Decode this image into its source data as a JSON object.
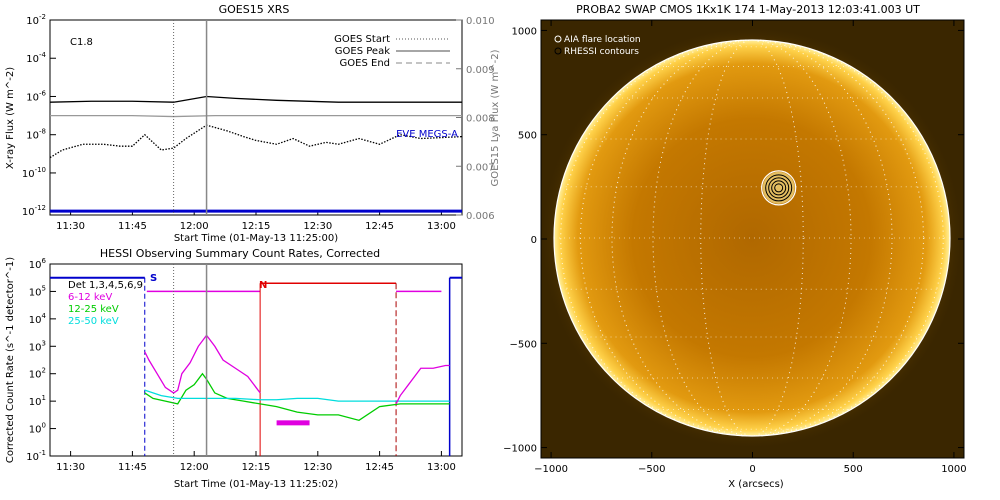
{
  "chart_data": [
    {
      "type": "line",
      "title": "GOES15 XRS",
      "xlabel": "Start Time (01-May-13 11:25:00)",
      "ylabel": "X-ray Flux (W m^-2)",
      "ylabel_right": "GOES15 Lya Flux (W m^-2)",
      "flare_class": "C1.8",
      "x_ticks": [
        "11:30",
        "11:45",
        "12:00",
        "12:15",
        "12:30",
        "12:45",
        "13:00"
      ],
      "x_minutes": [
        30,
        45,
        60,
        75,
        90,
        105,
        120
      ],
      "xlim_minutes": [
        25,
        125
      ],
      "y_ticks": [
        "10^-2",
        "10^-4",
        "10^-6",
        "10^-8",
        "10^-10",
        "10^-12"
      ],
      "ylim_log10": [
        -12.2,
        -2
      ],
      "y2_ticks": [
        "0.010",
        "0.009",
        "0.008",
        "0.007",
        "0.006"
      ],
      "y2lim": [
        0.006,
        0.01
      ],
      "legend": [
        {
          "label": "GOES Start",
          "style": "dotted"
        },
        {
          "label": "GOES Peak",
          "style": "solid"
        },
        {
          "label": "GOES End",
          "style": "dashed"
        }
      ],
      "annotation": "EVE MEGS-A",
      "markers": {
        "start_min": 55,
        "peak_min": 63
      },
      "series": [
        {
          "name": "",
          "color": "#000000",
          "x": [
            25,
            35,
            45,
            55,
            63,
            70,
            80,
            95,
            105,
            125
          ],
          "log10y": [
            -6.3,
            -6.25,
            -6.25,
            -6.3,
            -6.0,
            -6.1,
            -6.2,
            -6.3,
            -6.3,
            -6.3
          ]
        },
        {
          "name": "",
          "color": "#999999",
          "x": [
            25,
            45,
            55,
            65,
            85,
            105,
            125
          ],
          "log10y": [
            -7.0,
            -7.0,
            -7.05,
            -7.0,
            -7.0,
            -7.0,
            -7.0
          ]
        },
        {
          "name": "",
          "color": "#000000",
          "dotted": true,
          "x": [
            25,
            28,
            33,
            38,
            42,
            45,
            48,
            52,
            55,
            58,
            63,
            68,
            72,
            75,
            80,
            84,
            88,
            92,
            95,
            100,
            105,
            110,
            115,
            125
          ],
          "log10y": [
            -9.2,
            -8.8,
            -8.5,
            -8.5,
            -8.6,
            -8.6,
            -8.0,
            -8.8,
            -8.7,
            -8.2,
            -7.5,
            -7.8,
            -8.1,
            -8.3,
            -8.5,
            -8.2,
            -8.6,
            -8.4,
            -8.5,
            -8.2,
            -8.5,
            -8.0,
            -8.2,
            -8.1
          ]
        },
        {
          "name": "EVE MEGS-A",
          "color": "#0000cc",
          "x": [
            25,
            125
          ],
          "log10y": [
            -12.0,
            -12.0
          ]
        }
      ]
    },
    {
      "type": "line",
      "title": "HESSI Observing Summary Count Rates, Corrected",
      "xlabel": "Start Time (01-May-13 11:25:02)",
      "ylabel": "Corrected Count Rate (s^-1 detector^-1)",
      "x_ticks": [
        "11:30",
        "11:45",
        "12:00",
        "12:15",
        "12:30",
        "12:45",
        "13:00"
      ],
      "x_minutes": [
        30,
        45,
        60,
        75,
        90,
        105,
        120
      ],
      "xlim_minutes": [
        25,
        125
      ],
      "y_ticks": [
        "10^6",
        "10^5",
        "10^4",
        "10^3",
        "10^2",
        "10^1",
        "10^0",
        "10^-1"
      ],
      "ylim_log10": [
        -1,
        6
      ],
      "legend": [
        {
          "label": "Det 1,3,4,5,6,9",
          "color": "#000000"
        },
        {
          "label": "6-12 keV",
          "color": "#e000e0"
        },
        {
          "label": "12-25 keV",
          "color": "#00cc00"
        },
        {
          "label": "25-50 keV",
          "color": "#00dddd"
        }
      ],
      "flags": {
        "S": "S",
        "N": "N"
      },
      "markers": {
        "start_min": 55,
        "peak_min": 63,
        "night_start_min": 76,
        "night_end_min": 109,
        "saa_start_min": 48,
        "saa_end_min": 122
      },
      "series": [
        {
          "name": "6-12 keV",
          "color": "#e000e0",
          "x": [
            48,
            49,
            51,
            53,
            55,
            56,
            57,
            59,
            61,
            63,
            65,
            67,
            70,
            73,
            75,
            76
          ],
          "log10y": [
            2.8,
            2.5,
            2.0,
            1.5,
            1.3,
            1.4,
            2.0,
            2.4,
            3.0,
            3.4,
            3.0,
            2.5,
            2.2,
            1.9,
            1.5,
            1.3
          ]
        },
        {
          "name": "12-25 keV",
          "color": "#00cc00",
          "x": [
            48,
            50,
            53,
            56,
            58,
            60,
            62,
            63,
            65,
            68,
            72,
            76,
            80,
            85,
            90,
            95,
            100,
            105,
            110,
            115,
            120,
            122
          ],
          "log10y": [
            1.3,
            1.1,
            1.0,
            0.9,
            1.4,
            1.6,
            2.0,
            1.8,
            1.3,
            1.1,
            1.0,
            0.9,
            0.8,
            0.6,
            0.5,
            0.5,
            0.3,
            0.8,
            0.9,
            0.9,
            0.9,
            0.9
          ]
        },
        {
          "name": "25-50 keV",
          "color": "#00dddd",
          "x": [
            48,
            52,
            56,
            60,
            64,
            70,
            76,
            80,
            85,
            90,
            95,
            100,
            105,
            110,
            115,
            122
          ],
          "log10y": [
            1.4,
            1.2,
            1.1,
            1.1,
            1.1,
            1.1,
            1.05,
            1.05,
            1.1,
            1.1,
            1.0,
            1.0,
            1.0,
            1.0,
            1.0,
            1.0
          ]
        },
        {
          "name": "",
          "color": "#e000e0",
          "x": [
            109,
            110,
            112,
            115,
            118,
            121,
            122
          ],
          "log10y": [
            0.9,
            1.2,
            1.6,
            2.2,
            2.2,
            2.3,
            2.3
          ]
        }
      ]
    },
    {
      "type": "image",
      "title": "PROBA2 SWAP CMOS 1Kx1K 174   1-May-2013 12:03:41.003 UT",
      "xlabel": "X (arcsecs)",
      "x_ticks": [
        "−1000",
        "−500",
        "0",
        "500",
        "1000"
      ],
      "y_ticks": [
        "1000",
        "500",
        "0",
        "−500",
        "−1000"
      ],
      "xlim": [
        -1050,
        1050
      ],
      "ylim": [
        -1050,
        1050
      ],
      "legend": [
        "AIA flare location",
        "RHESSI contours"
      ],
      "flare_location": {
        "x": 130,
        "y": 245
      },
      "colors": {
        "disk": "#c87a00",
        "bright": "#ffd24a",
        "background": "#3a2600"
      }
    }
  ]
}
